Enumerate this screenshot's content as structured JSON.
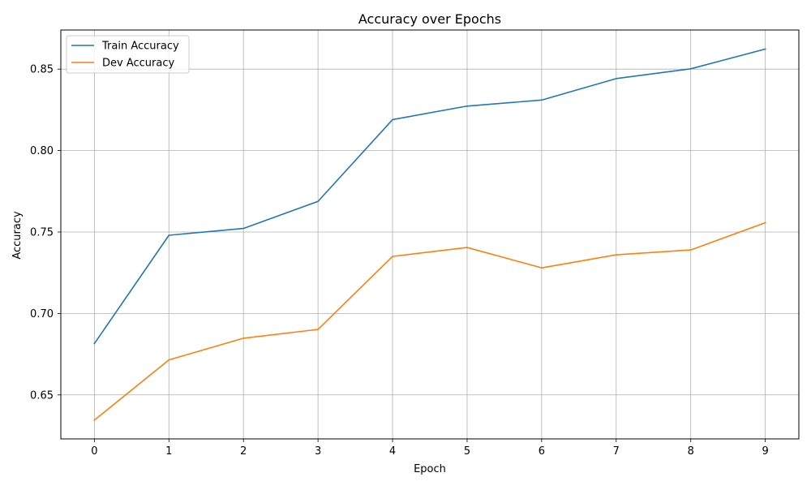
{
  "chart_data": {
    "type": "line",
    "title": "Accuracy over Epochs",
    "xlabel": "Epoch",
    "ylabel": "Accuracy",
    "x": [
      0,
      1,
      2,
      3,
      4,
      5,
      6,
      7,
      8,
      9
    ],
    "xticks": [
      "0",
      "1",
      "2",
      "3",
      "4",
      "5",
      "6",
      "7",
      "8",
      "9"
    ],
    "yticks": [
      "0.65",
      "0.70",
      "0.75",
      "0.80",
      "0.85"
    ],
    "xlim": [
      -0.45,
      9.45
    ],
    "ylim": [
      0.623,
      0.874
    ],
    "grid": true,
    "legend_position": "top-left",
    "series": [
      {
        "name": "Train Accuracy",
        "color": "#1f77b4",
        "values": [
          0.6815,
          0.748,
          0.7522,
          0.7688,
          0.819,
          0.8273,
          0.831,
          0.8442,
          0.8502,
          0.8623
        ]
      },
      {
        "name": "Dev Accuracy",
        "color": "#ff7f0e",
        "values": [
          0.6345,
          0.6715,
          0.6848,
          0.6902,
          0.735,
          0.7405,
          0.728,
          0.736,
          0.739,
          0.7557
        ]
      }
    ]
  }
}
